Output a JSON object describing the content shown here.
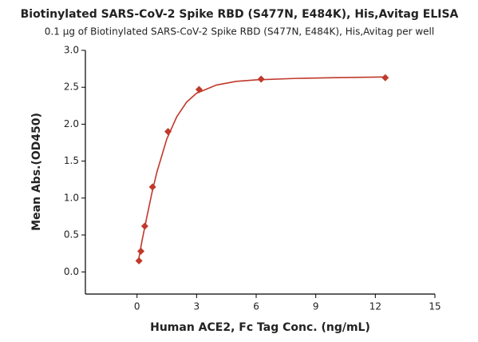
{
  "chart_data": {
    "type": "scatter",
    "title": "Biotinylated SARS-CoV-2 Spike RBD (S477N, E484K), His,Avitag ELISA",
    "subtitle": "0.1 μg of Biotinylated SARS-CoV-2 Spike RBD (S477N, E484K), His,Avitag per well",
    "x_label": "Human ACE2, Fc Tag Conc. (ng/mL)",
    "y_label": "Mean Abs.(OD450)",
    "color": "#c0392b",
    "x": [
      0.098,
      0.195,
      0.39,
      0.78,
      1.56,
      3.125,
      6.25,
      12.5
    ],
    "values": [
      0.15,
      0.28,
      0.62,
      1.15,
      1.9,
      2.47,
      2.61,
      2.63
    ],
    "fit": {
      "x": [
        0.05,
        0.25,
        0.5,
        0.75,
        1,
        1.5,
        2,
        2.5,
        3,
        4,
        5,
        6,
        8,
        10,
        12.5
      ],
      "values": [
        0.12,
        0.42,
        0.75,
        1.07,
        1.35,
        1.8,
        2.1,
        2.3,
        2.42,
        2.53,
        2.58,
        2.6,
        2.62,
        2.63,
        2.64
      ]
    },
    "xlim": [
      -2.6,
      15
    ],
    "ylim": [
      -0.3,
      3.0
    ],
    "xticks": [
      0,
      3,
      6,
      9,
      12,
      15
    ],
    "yticks": [
      {
        "value": 0,
        "label": "0.0"
      },
      0.5,
      {
        "value": 1,
        "label": "1.0"
      },
      1.5,
      {
        "value": 2,
        "label": "2.0"
      },
      2.5,
      {
        "value": 3,
        "label": "3.0"
      }
    ]
  }
}
